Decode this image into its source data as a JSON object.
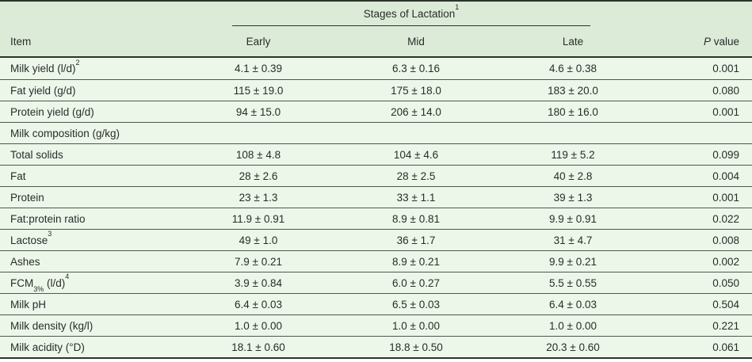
{
  "colors": {
    "header_band_bg": "#dcebd8",
    "row_bg": "#ecf7ea",
    "strong_border": "#2d332c",
    "row_divider": "#4e584e",
    "text": "#2b2b2b",
    "page_bg": "#ffffff"
  },
  "table": {
    "spanner": {
      "title": "Stages of Lactation",
      "sup": "1"
    },
    "columns": {
      "item": "Item",
      "early": "Early",
      "mid": "Mid",
      "late": "Late",
      "p_italic": "P",
      "p_rest": " value"
    },
    "rows": [
      {
        "item": "Milk yield (l/d)",
        "item_sup": "2",
        "early": "4.1 ± 0.39",
        "mid": "6.3 ± 0.16",
        "late": "4.6 ± 0.38",
        "p": "0.001"
      },
      {
        "item": "Fat yield (g/d)",
        "early": "115 ± 19.0",
        "mid": "175 ± 18.0",
        "late": "183 ± 20.0",
        "p": "0.080"
      },
      {
        "item": "Protein yield (g/d)",
        "early": "94 ± 15.0",
        "mid": "206 ± 14.0",
        "late": "180 ± 16.0",
        "p": "0.001"
      },
      {
        "item": "Milk composition (g/kg)"
      },
      {
        "item": "Total solids",
        "early": "108 ± 4.8",
        "mid": "104 ± 4.6",
        "late": "119 ± 5.2",
        "p": "0.099"
      },
      {
        "item": "Fat",
        "early": "28 ± 2.6",
        "mid": "28 ± 2.5",
        "late": "40 ± 2.8",
        "p": "0.004"
      },
      {
        "item": "Protein",
        "early": "23 ± 1.3",
        "mid": "33 ± 1.1",
        "late": "39 ± 1.3",
        "p": "0.001"
      },
      {
        "item": "Fat:protein ratio",
        "early": "11.9 ± 0.91",
        "mid": "8.9 ± 0.81",
        "late": "9.9 ± 0.91",
        "p": "0.022"
      },
      {
        "item": "Lactose",
        "item_sup": "3",
        "early": "49 ± 1.0",
        "mid": "36 ± 1.7",
        "late": "31 ± 4.7",
        "p": "0.008"
      },
      {
        "item": "Ashes",
        "early": "7.9 ± 0.21",
        "mid": "8.9 ± 0.21",
        "late": "9.9 ± 0.21",
        "p": "0.002"
      },
      {
        "item": "FCM",
        "item_sub": "3%",
        "item_mid": " (l/d)",
        "item_sup": "4",
        "early": "3.9 ± 0.84",
        "mid": "6.0 ± 0.27",
        "late": "5.5 ± 0.55",
        "p": "0.050"
      },
      {
        "item": "Milk pH",
        "early": "6.4 ± 0.03",
        "mid": "6.5 ± 0.03",
        "late": "6.4 ± 0.03",
        "p": "0.504"
      },
      {
        "item": "Milk density (kg/l)",
        "early": "1.0 ± 0.00",
        "mid": "1.0 ± 0.00",
        "late": "1.0 ± 0.00",
        "p": "0.221"
      },
      {
        "item": "Milk acidity (°D)",
        "early": "18.1 ± 0.60",
        "mid": "18.8 ± 0.50",
        "late": "20.3 ± 0.60",
        "p": "0.061"
      }
    ]
  }
}
